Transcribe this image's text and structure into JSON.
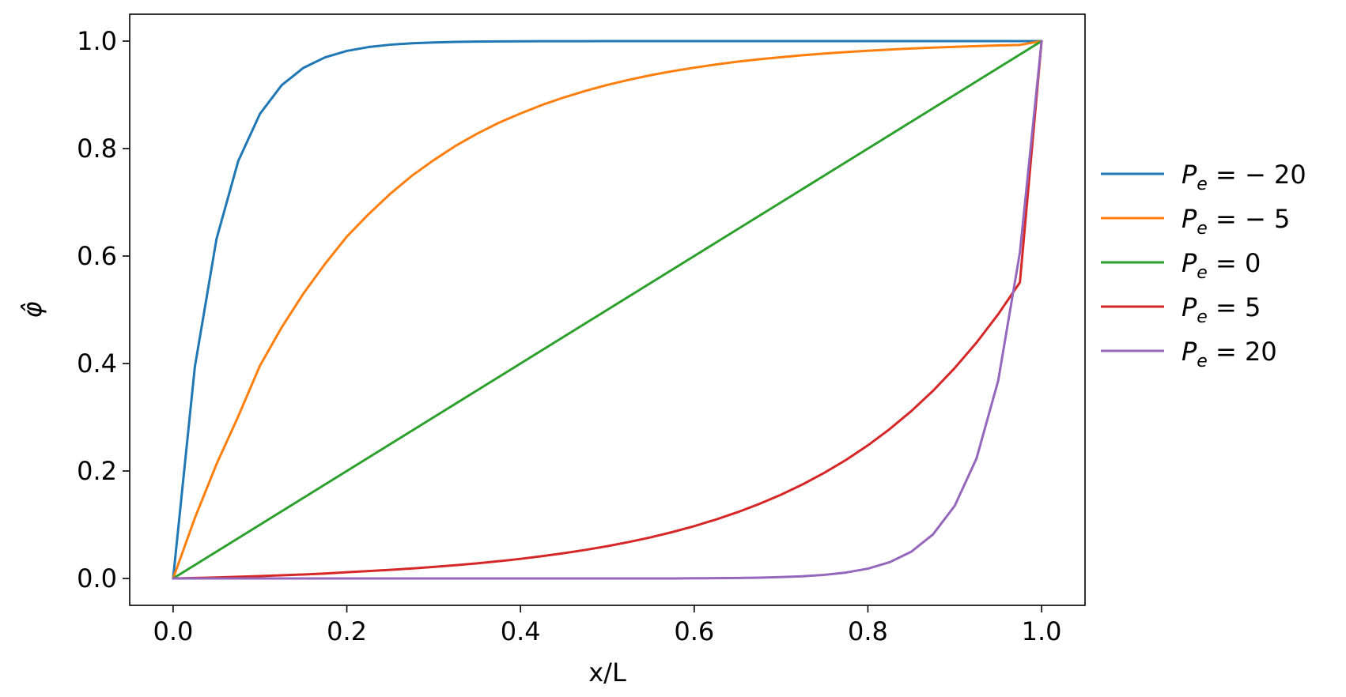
{
  "chart_data": {
    "type": "line",
    "title": "",
    "xlabel": "x/L",
    "ylabel": "φ̂",
    "xlim": [
      -0.05,
      1.05
    ],
    "ylim": [
      -0.05,
      1.05
    ],
    "xticks": [
      0.0,
      0.2,
      0.4,
      0.6,
      0.8,
      1.0
    ],
    "xtick_labels": [
      "0.0",
      "0.2",
      "0.4",
      "0.6",
      "0.8",
      "1.0"
    ],
    "yticks": [
      0.0,
      0.2,
      0.4,
      0.6,
      0.8,
      1.0
    ],
    "ytick_labels": [
      "0.0",
      "0.2",
      "0.4",
      "0.6",
      "0.8",
      "1.0"
    ],
    "grid": false,
    "legend_position": "outside-right",
    "x": [
      0.0,
      0.025,
      0.05,
      0.075,
      0.1,
      0.125,
      0.15,
      0.175,
      0.2,
      0.225,
      0.25,
      0.275,
      0.3,
      0.325,
      0.35,
      0.375,
      0.4,
      0.425,
      0.45,
      0.475,
      0.5,
      0.525,
      0.55,
      0.575,
      0.6,
      0.625,
      0.65,
      0.675,
      0.7,
      0.725,
      0.75,
      0.775,
      0.8,
      0.825,
      0.85,
      0.875,
      0.9,
      0.925,
      0.95,
      0.975,
      1.0
    ],
    "series": [
      {
        "name": "P_e = −20",
        "legend_main": "P",
        "legend_sub": "e",
        "legend_rest": " = − 20",
        "color": "#1f77b4",
        "values": [
          0.0,
          0.3935,
          0.6321,
          0.7769,
          0.8647,
          0.9179,
          0.9502,
          0.9698,
          0.9817,
          0.9889,
          0.9933,
          0.9959,
          0.9975,
          0.9985,
          0.9991,
          0.9994,
          0.9997,
          0.9998,
          0.9999,
          0.9999,
          1.0,
          1.0,
          1.0,
          1.0,
          1.0,
          1.0,
          1.0,
          1.0,
          1.0,
          1.0,
          1.0,
          1.0,
          1.0,
          1.0,
          1.0,
          1.0,
          1.0,
          1.0,
          1.0,
          1.0,
          1.0
        ]
      },
      {
        "name": "P_e = −5",
        "legend_main": "P",
        "legend_sub": "e",
        "legend_rest": " = − 5",
        "color": "#ff7f0e",
        "values": [
          0.0,
          0.1124,
          0.2128,
          0.3017,
          0.396,
          0.4672,
          0.5302,
          0.5856,
          0.6361,
          0.6778,
          0.7158,
          0.7495,
          0.7784,
          0.8048,
          0.8277,
          0.848,
          0.8652,
          0.8813,
          0.8952,
          0.9075,
          0.9185,
          0.928,
          0.9366,
          0.944,
          0.9506,
          0.9564,
          0.9617,
          0.9661,
          0.9701,
          0.9737,
          0.9768,
          0.9796,
          0.982,
          0.9842,
          0.9862,
          0.9879,
          0.9893,
          0.9907,
          0.9919,
          0.9929,
          1.0
        ]
      },
      {
        "name": "P_e = 0",
        "legend_main": "P",
        "legend_sub": "e",
        "legend_rest": " = 0",
        "color": "#2ca02c",
        "values": [
          0.0,
          0.025,
          0.05,
          0.075,
          0.1,
          0.125,
          0.15,
          0.175,
          0.2,
          0.225,
          0.25,
          0.275,
          0.3,
          0.325,
          0.35,
          0.375,
          0.4,
          0.425,
          0.45,
          0.475,
          0.5,
          0.525,
          0.55,
          0.575,
          0.6,
          0.625,
          0.65,
          0.675,
          0.7,
          0.725,
          0.75,
          0.775,
          0.8,
          0.825,
          0.85,
          0.875,
          0.9,
          0.925,
          0.95,
          0.975,
          1.0
        ]
      },
      {
        "name": "P_e = 5",
        "legend_main": "P",
        "legend_sub": "e",
        "legend_rest": " = 5",
        "color": "#d62728",
        "values": [
          0.0,
          0.0009,
          0.0019,
          0.0031,
          0.0044,
          0.0058,
          0.0074,
          0.0091,
          0.0116,
          0.0137,
          0.016,
          0.0186,
          0.0215,
          0.0246,
          0.0281,
          0.0321,
          0.0365,
          0.0415,
          0.047,
          0.0532,
          0.0601,
          0.0679,
          0.0766,
          0.0864,
          0.0974,
          0.1097,
          0.1234,
          0.1387,
          0.1559,
          0.1752,
          0.1968,
          0.2208,
          0.2477,
          0.2779,
          0.3115,
          0.3493,
          0.3916,
          0.4388,
          0.4916,
          0.5509,
          1.0
        ]
      },
      {
        "name": "P_e = 20",
        "legend_main": "P",
        "legend_sub": "e",
        "legend_rest": " = 20",
        "color": "#9467bd",
        "values": [
          0.0,
          0.0,
          0.0,
          0.0,
          0.0,
          0.0,
          0.0,
          0.0,
          0.0,
          0.0,
          0.0,
          0.0,
          0.0,
          0.0,
          0.0,
          0.0,
          0.0,
          0.0,
          0.0,
          0.0,
          0.0,
          0.0,
          0.0,
          0.0,
          0.0003,
          0.0006,
          0.0009,
          0.0015,
          0.0025,
          0.0041,
          0.0067,
          0.0111,
          0.0183,
          0.0302,
          0.0498,
          0.0821,
          0.1353,
          0.2231,
          0.3679,
          0.6065,
          1.0
        ]
      }
    ]
  }
}
